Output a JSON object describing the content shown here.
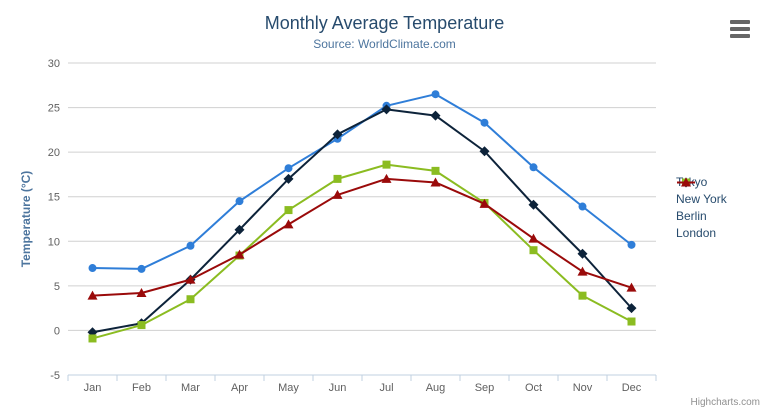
{
  "chart_data": {
    "type": "line",
    "title": "Monthly Average Temperature",
    "subtitle": "Source: WorldClimate.com",
    "xlabel": "",
    "ylabel": "Temperature (°C)",
    "categories": [
      "Jan",
      "Feb",
      "Mar",
      "Apr",
      "May",
      "Jun",
      "Jul",
      "Aug",
      "Sep",
      "Oct",
      "Nov",
      "Dec"
    ],
    "series": [
      {
        "name": "Tokyo",
        "marker": "circle",
        "color": "#2f7ed8",
        "values": [
          7.0,
          6.9,
          9.5,
          14.5,
          18.2,
          21.5,
          25.2,
          26.5,
          23.3,
          18.3,
          13.9,
          9.6
        ]
      },
      {
        "name": "New York",
        "marker": "diamond",
        "color": "#0d233a",
        "values": [
          -0.2,
          0.8,
          5.7,
          11.3,
          17.0,
          22.0,
          24.8,
          24.1,
          20.1,
          14.1,
          8.6,
          2.5
        ]
      },
      {
        "name": "Berlin",
        "marker": "square",
        "color": "#8bbc21",
        "values": [
          -0.9,
          0.6,
          3.5,
          8.4,
          13.5,
          17.0,
          18.6,
          17.9,
          14.3,
          9.0,
          3.9,
          1.0
        ]
      },
      {
        "name": "London",
        "marker": "triangle",
        "color": "#9a0a0a",
        "values": [
          3.9,
          4.2,
          5.7,
          8.5,
          11.9,
          15.2,
          17.0,
          16.6,
          14.2,
          10.3,
          6.6,
          4.8
        ]
      }
    ],
    "ylim": [
      -5,
      30
    ],
    "ytick_step": 5,
    "grid": true,
    "legend_position": "right"
  },
  "toolbar": {
    "export_menu_icon": "hamburger-icon"
  },
  "credits": {
    "label": "Highcharts.com"
  },
  "style": {
    "title_color": "#274b6d",
    "subtitle_color": "#4d759e",
    "axis_title_color": "#4d759e",
    "tick_label_color": "#606060",
    "grid_color": "#d0d0d0",
    "axis_line_color": "#c0d0e0",
    "legend_text_color": "#274b6d",
    "credits_color": "#909090",
    "burger_color": "#666666",
    "background": "#ffffff"
  }
}
